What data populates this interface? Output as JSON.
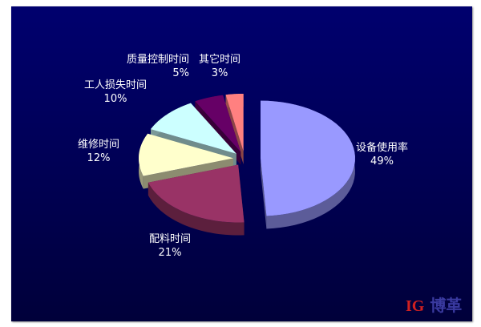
{
  "chart_data": {
    "type": "pie",
    "style": "3d-exploded",
    "title": "",
    "slices": [
      {
        "label": "设备使用率",
        "value": 49,
        "value_label": "49%",
        "color": "#9999ff"
      },
      {
        "label": "配料时间",
        "value": 21,
        "value_label": "21%",
        "color": "#993366"
      },
      {
        "label": "维修时间",
        "value": 12,
        "value_label": "12%",
        "color": "#ffffcc"
      },
      {
        "label": "工人损失时间",
        "value": 10,
        "value_label": "10%",
        "color": "#ccffff"
      },
      {
        "label": "质量控制时间",
        "value": 5,
        "value_label": "5%",
        "color": "#660066"
      },
      {
        "label": "其它时间",
        "value": 3,
        "value_label": "3%",
        "color": "#ff8080"
      }
    ],
    "start": "12 o'clock",
    "direction": "clockwise"
  },
  "logo": {
    "text": "博革",
    "mark": "IG"
  }
}
